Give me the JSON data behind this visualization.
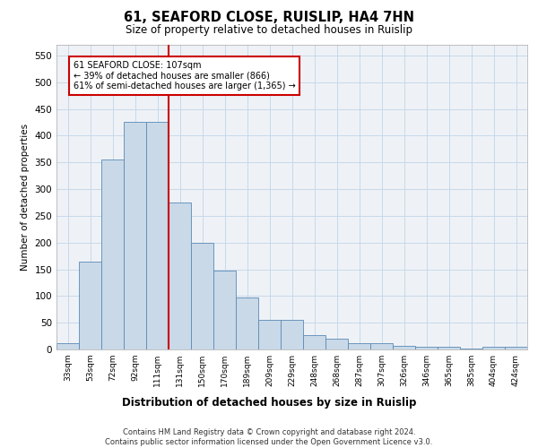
{
  "title1": "61, SEAFORD CLOSE, RUISLIP, HA4 7HN",
  "title2": "Size of property relative to detached houses in Ruislip",
  "dist_label": "Distribution of detached houses by size in Ruislip",
  "ylabel": "Number of detached properties",
  "bins": [
    "33sqm",
    "53sqm",
    "72sqm",
    "92sqm",
    "111sqm",
    "131sqm",
    "150sqm",
    "170sqm",
    "189sqm",
    "209sqm",
    "229sqm",
    "248sqm",
    "268sqm",
    "287sqm",
    "307sqm",
    "326sqm",
    "346sqm",
    "365sqm",
    "385sqm",
    "404sqm",
    "424sqm"
  ],
  "values": [
    12,
    165,
    355,
    425,
    425,
    275,
    200,
    148,
    97,
    55,
    55,
    27,
    20,
    12,
    12,
    6,
    5,
    5,
    1,
    5,
    5
  ],
  "bar_color": "#c9d9e8",
  "bar_edge_color": "#5b8ab5",
  "vline_x": 4.5,
  "vline_color": "#cc0000",
  "annotation_text": "61 SEAFORD CLOSE: 107sqm\n← 39% of detached houses are smaller (866)\n61% of semi-detached houses are larger (1,365) →",
  "annotation_box_color": "#cc0000",
  "ylim": [
    0,
    570
  ],
  "yticks": [
    0,
    50,
    100,
    150,
    200,
    250,
    300,
    350,
    400,
    450,
    500,
    550
  ],
  "grid_color": "#c8d8e8",
  "footer": "Contains HM Land Registry data © Crown copyright and database right 2024.\nContains public sector information licensed under the Open Government Licence v3.0.",
  "bg_color": "#eef2f7"
}
